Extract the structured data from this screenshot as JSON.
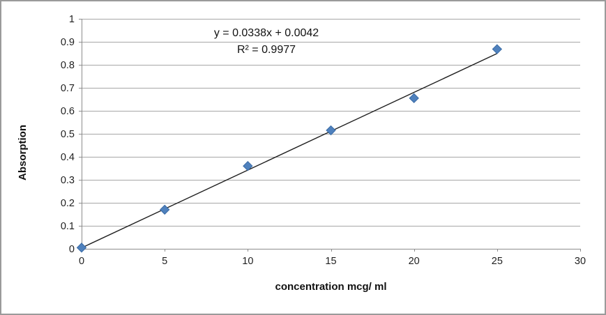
{
  "chart_data": {
    "type": "scatter",
    "title": "",
    "xlabel": "concentration mcg/ ml",
    "ylabel": "Absorption",
    "x": [
      0,
      5,
      10,
      15,
      20,
      25
    ],
    "y": [
      0.005,
      0.17,
      0.36,
      0.515,
      0.655,
      0.868
    ],
    "xlim": [
      0,
      30
    ],
    "ylim": [
      0,
      1
    ],
    "x_ticks": [
      0,
      5,
      10,
      15,
      20,
      25,
      30
    ],
    "x_tick_labels": [
      "0",
      "5",
      "10",
      "15",
      "20",
      "25",
      "30"
    ],
    "y_ticks": [
      0,
      0.1,
      0.2,
      0.3,
      0.4,
      0.5,
      0.6,
      0.7,
      0.8,
      0.9,
      1
    ],
    "y_tick_labels": [
      "0",
      "0.1",
      "0.2",
      "0.3",
      "0.4",
      "0.5",
      "0.6",
      "0.7",
      "0.8",
      "0.9",
      "1"
    ],
    "grid": "horizontal",
    "legend": "none",
    "marker": "diamond",
    "marker_color": "#4F81BD",
    "marker_stroke": "#3A6BA5",
    "gridline_color": "#A6A6A6",
    "axis_color": "#8C8C8C",
    "text_color": "#1f1f1f",
    "trendline": {
      "type": "linear",
      "slope": 0.0338,
      "intercept": 0.0042,
      "x_start": 0,
      "x_end": 25,
      "color": "#1f1f1f",
      "equation": "y = 0.0338x + 0.0042",
      "r_squared_label": "R² = 0.9977"
    }
  },
  "frame": {
    "border_color": "#9a9a9a",
    "background": "#ffffff"
  }
}
